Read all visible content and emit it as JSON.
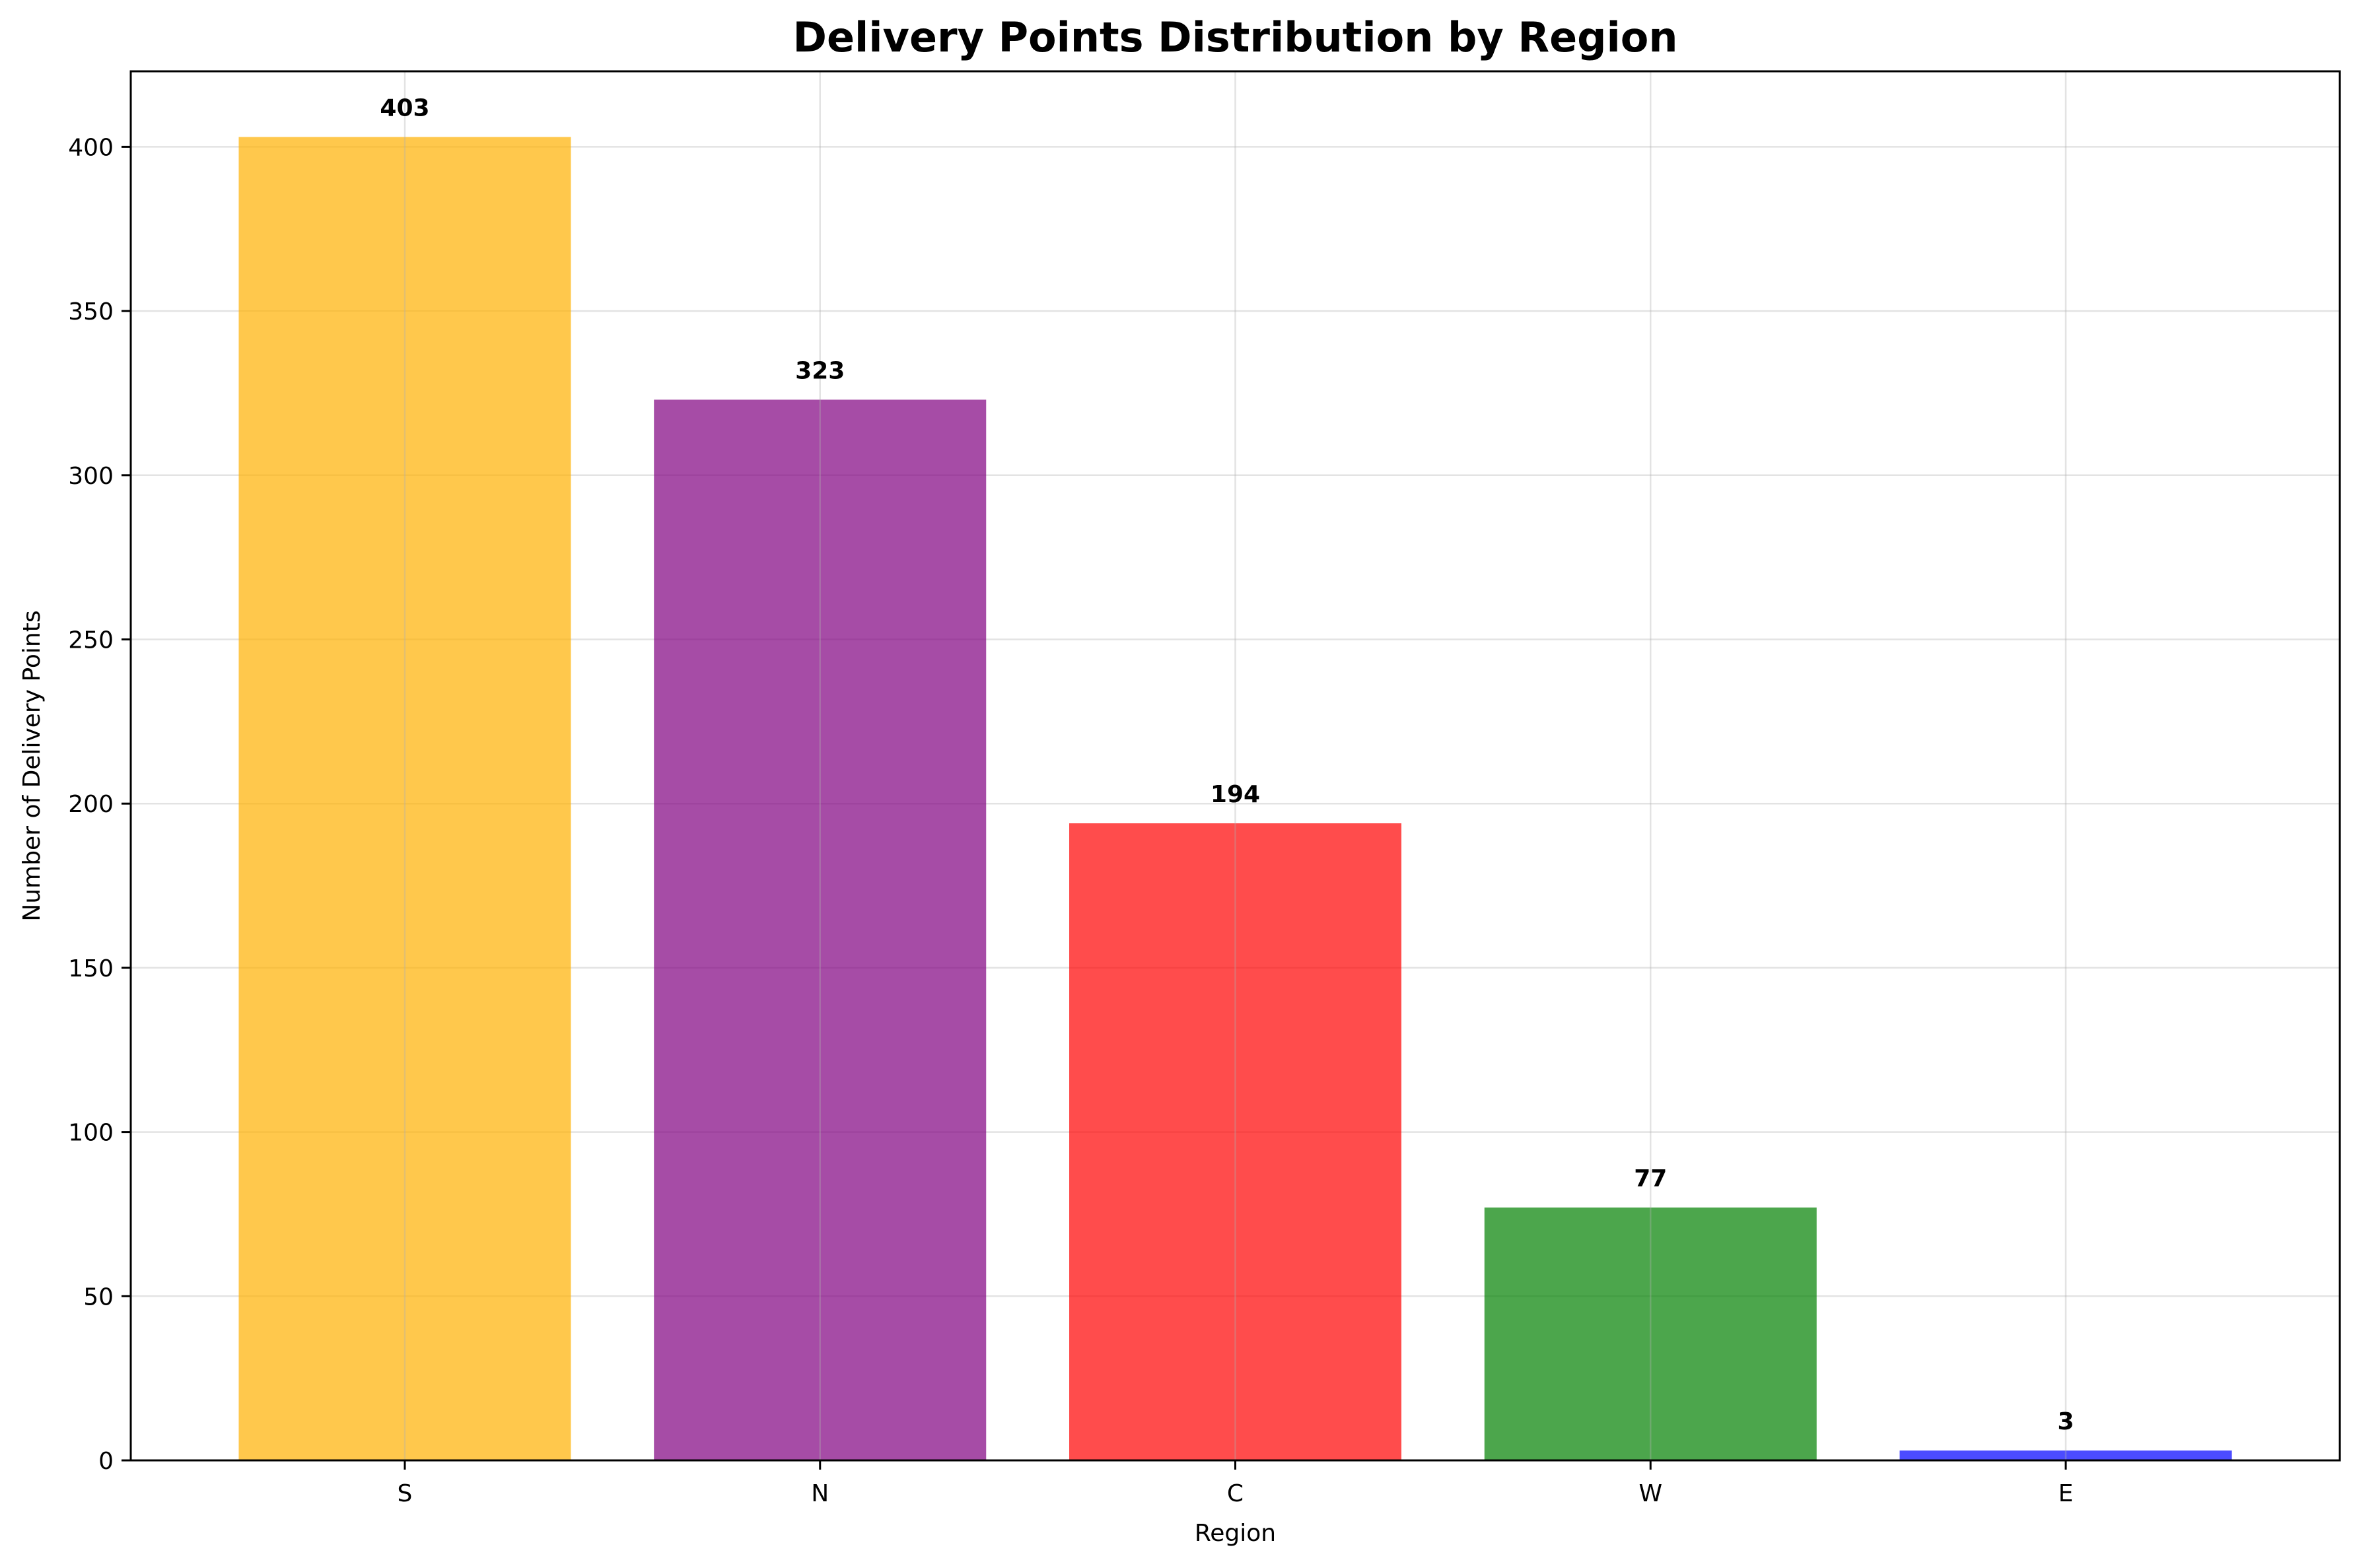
{
  "chart_data": {
    "type": "bar",
    "title": "Delivery Points Distribution by Region",
    "xlabel": "Region",
    "ylabel": "Number of Delivery Points",
    "categories": [
      "S",
      "N",
      "C",
      "W",
      "E"
    ],
    "values": [
      403,
      323,
      194,
      77,
      3
    ],
    "data_labels": [
      "403",
      "323",
      "194",
      "77",
      "3"
    ],
    "colors": [
      "#ffb000",
      "#800080",
      "#ff0000",
      "#008000",
      "#0000ff"
    ],
    "bar_alpha": 0.7,
    "ylim": [
      0,
      423
    ],
    "yticks": [
      0,
      50,
      100,
      150,
      200,
      250,
      300,
      350,
      400
    ],
    "ytick_labels": [
      "0",
      "50",
      "100",
      "150",
      "200",
      "250",
      "300",
      "350",
      "400"
    ],
    "grid": true,
    "legend": "none"
  }
}
